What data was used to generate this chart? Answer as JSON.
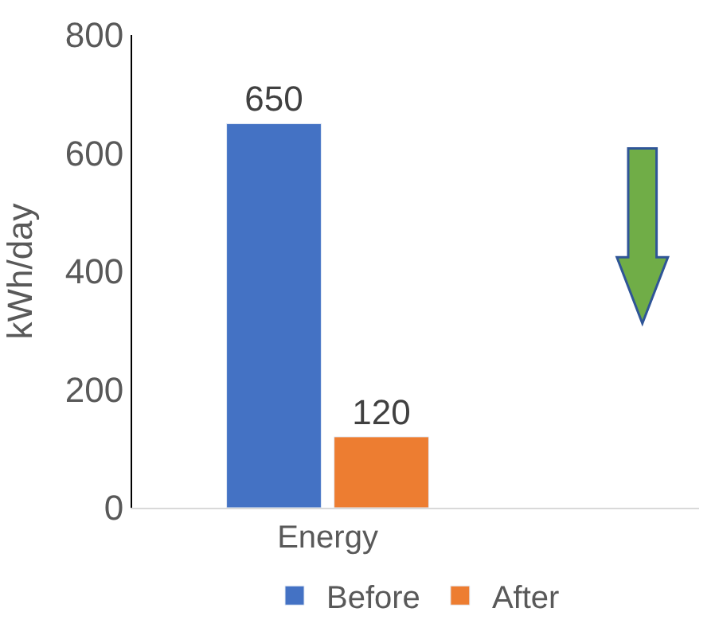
{
  "chart_data": {
    "type": "bar",
    "categories": [
      "Energy"
    ],
    "ylabel": "kWh/day",
    "ylim": [
      0,
      800
    ],
    "yticks": [
      0,
      200,
      400,
      600,
      800
    ],
    "data_labels": true,
    "legend": "bottom",
    "series": [
      {
        "name": "Before",
        "color": "#4472c4",
        "values": [
          650
        ]
      },
      {
        "name": "After",
        "color": "#ed7d31",
        "values": [
          120
        ]
      }
    ]
  }
}
